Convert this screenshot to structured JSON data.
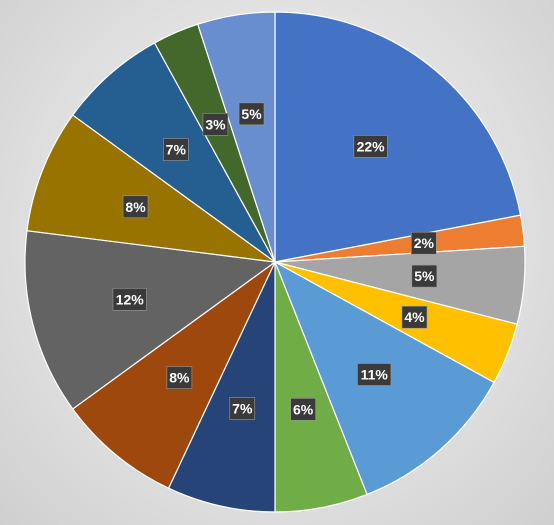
{
  "chart_data": {
    "type": "pie",
    "title": "",
    "start_angle_deg": 0,
    "direction": "clockwise",
    "slices": [
      {
        "label": "22%",
        "value": 22,
        "color": "#4472C4"
      },
      {
        "label": "2%",
        "value": 2,
        "color": "#ED7D31"
      },
      {
        "label": "5%",
        "value": 5,
        "color": "#A5A5A5"
      },
      {
        "label": "4%",
        "value": 4,
        "color": "#FFC000"
      },
      {
        "label": "11%",
        "value": 11,
        "color": "#5B9BD5"
      },
      {
        "label": "6%",
        "value": 6,
        "color": "#70AD47"
      },
      {
        "label": "7%",
        "value": 7,
        "color": "#264478"
      },
      {
        "label": "8%",
        "value": 8,
        "color": "#9E480E"
      },
      {
        "label": "12%",
        "value": 12,
        "color": "#636363"
      },
      {
        "label": "8%",
        "value": 8,
        "color": "#997300"
      },
      {
        "label": "7%",
        "value": 7,
        "color": "#255E91"
      },
      {
        "label": "3%",
        "value": 3,
        "color": "#43682B"
      },
      {
        "label": "5%",
        "value": 5,
        "color": "#698ED0"
      }
    ]
  }
}
